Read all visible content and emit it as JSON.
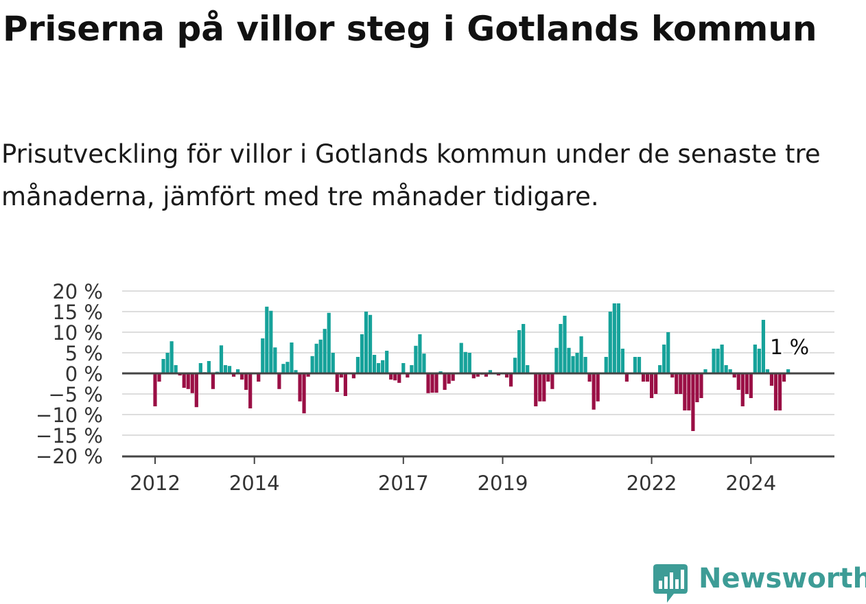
{
  "title": "Priserna på villor steg i Gotlands kommun",
  "subtitle": "Prisutveckling för villor i Gotlands kommun under de senaste tre månaderna, jämfört med tre månader tidigare.",
  "brand": {
    "name": "Newsworthy",
    "icon": "newsworthy-logo-icon",
    "color": "#3d9c96"
  },
  "colors": {
    "positive": "#16a29a",
    "negative": "#9a0f45",
    "grid": "#dddddd",
    "axis": "#444444"
  },
  "chart_data": {
    "type": "bar",
    "ylim": [
      -20,
      20
    ],
    "y_ticks": [
      {
        "value": 20,
        "label": "20 %"
      },
      {
        "value": 15,
        "label": "15 %"
      },
      {
        "value": 10,
        "label": "10 %"
      },
      {
        "value": 5,
        "label": "5 %"
      },
      {
        "value": 0,
        "label": "0 %"
      },
      {
        "value": -5,
        "label": "−5 %"
      },
      {
        "value": -10,
        "label": "−10 %"
      },
      {
        "value": -15,
        "label": "−15 %"
      },
      {
        "value": -20,
        "label": "−20 %"
      }
    ],
    "x_start": "2012-01",
    "x_ticks": [
      {
        "date": "2012-01",
        "label": "2012"
      },
      {
        "date": "2014-01",
        "label": "2014"
      },
      {
        "date": "2017-01",
        "label": "2017"
      },
      {
        "date": "2019-01",
        "label": "2019"
      },
      {
        "date": "2022-01",
        "label": "2022"
      },
      {
        "date": "2024-01",
        "label": "2024"
      }
    ],
    "annotation": {
      "label": "1 %",
      "date": "2024-10"
    },
    "grid": true,
    "series": [
      {
        "values": [
          -8,
          -2,
          3.5,
          5,
          7.8,
          2,
          -0.5,
          -3.5,
          -3.8,
          -4.8,
          -8.2,
          2.5,
          0.3,
          3,
          -3.8,
          0.4,
          6.8,
          2,
          1.8,
          -0.8,
          1,
          -1.5,
          -4,
          -8.5,
          -0.2,
          -2,
          8.5,
          16.2,
          15.2,
          6.3,
          -3.8,
          2.3,
          2.8,
          7.5,
          0.8,
          -6.8,
          -9.7,
          -0.8,
          4.2,
          7.2,
          8.2,
          10.8,
          14.7,
          5,
          -4.5,
          -1,
          -5.5,
          0,
          -1.2,
          4,
          9.5,
          15,
          14.2,
          4.5,
          2.5,
          3.2,
          5.5,
          -1.5,
          -1.7,
          -2.3,
          2.5,
          -1,
          2,
          6.7,
          9.5,
          4.8,
          -4.8,
          -4.7,
          -4.7,
          0.5,
          -4,
          -2.5,
          -1.8,
          0,
          7.4,
          5.2,
          5,
          -1.2,
          -0.8,
          -0.3,
          -0.8,
          0.8,
          0,
          -0.5,
          0,
          -1,
          -3.2,
          3.8,
          10.5,
          12,
          2,
          -0.1,
          -8,
          -6.8,
          -6.8,
          -2,
          -3.8,
          6.2,
          12,
          14,
          6.2,
          4.2,
          5,
          9,
          4,
          -2,
          -8.8,
          -6.8,
          0,
          4,
          15,
          17,
          17,
          6,
          -2,
          0,
          4,
          4,
          -2,
          -2,
          -6,
          -5,
          2,
          7,
          10,
          -1,
          -5,
          -5,
          -9,
          -9,
          -14,
          -7,
          -6,
          1,
          0,
          6,
          6,
          7,
          2,
          1,
          -1,
          -4,
          -8,
          -5,
          -6,
          7,
          6,
          13,
          1,
          -3,
          -9,
          -9,
          -2,
          1
        ]
      }
    ]
  }
}
